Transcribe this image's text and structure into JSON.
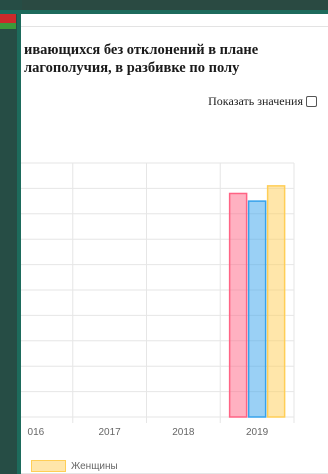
{
  "page": {
    "title": "ивающихся без отклонений в плане\nлагополучия, в разбивке по полу",
    "show_values_label": "Показать значения"
  },
  "chart_data": {
    "type": "bar",
    "categories": [
      "016",
      "2017",
      "2018",
      "2019"
    ],
    "series": [
      {
        "values": [
          null,
          null,
          null,
          0.88
        ],
        "color": "#ff6384"
      },
      {
        "values": [
          null,
          null,
          null,
          0.85
        ],
        "color": "#36a2eb"
      },
      {
        "name": "Женщины",
        "values": [
          null,
          null,
          null,
          0.91
        ],
        "color": "#ffce56"
      }
    ],
    "ylim": [
      0,
      1
    ],
    "grid": true,
    "legend": "bottom-left"
  }
}
